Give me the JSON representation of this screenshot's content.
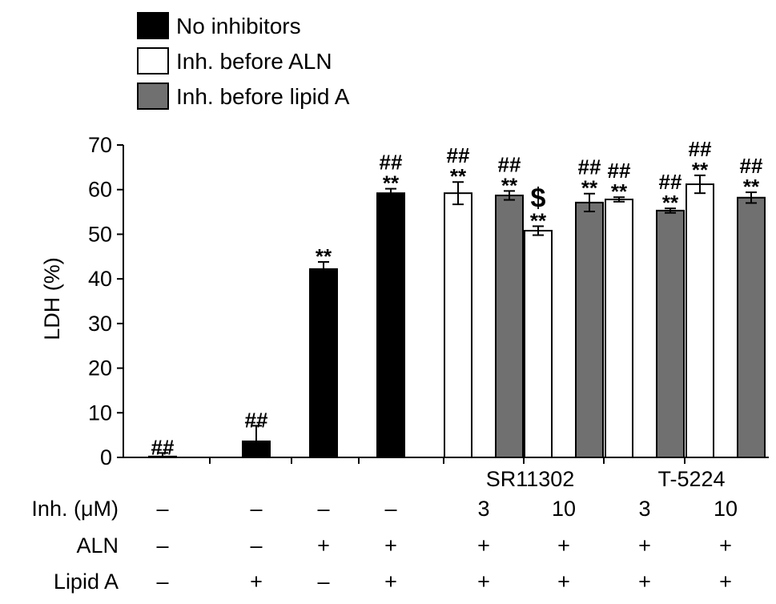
{
  "chart_data": {
    "type": "bar",
    "title": "",
    "ylabel": "LDH (%)",
    "xlabel": "",
    "ylim": [
      0,
      70
    ],
    "yticks": [
      0,
      10,
      20,
      30,
      40,
      50,
      60,
      70
    ],
    "grid": false,
    "legend_position": "top-left",
    "series": [
      {
        "name": "No inhibitors",
        "color": "#000000"
      },
      {
        "name": "Inh. before ALN",
        "color": "#ffffff"
      },
      {
        "name": "Inh. before lipid A",
        "color": "#707070"
      }
    ],
    "categories": [
      {
        "bars": [
          {
            "series": 0,
            "value": 0.2,
            "error": 0.8,
            "marks": [
              "##"
            ]
          }
        ]
      },
      {
        "bars": [
          {
            "series": 0,
            "value": 3.6,
            "error": 3.5,
            "marks": [
              "##"
            ]
          }
        ]
      },
      {
        "bars": [
          {
            "series": 0,
            "value": 42.2,
            "error": 1.6,
            "marks": [
              "**"
            ]
          }
        ]
      },
      {
        "bars": [
          {
            "series": 0,
            "value": 59.2,
            "error": 1.0,
            "marks": [
              "**",
              "##"
            ]
          }
        ]
      },
      {
        "bars": [
          {
            "series": 1,
            "value": 59.2,
            "error": 2.5,
            "marks": [
              "**",
              "##"
            ]
          },
          {
            "series": 2,
            "value": 58.7,
            "error": 1.0,
            "marks": [
              "**",
              "##"
            ]
          }
        ]
      },
      {
        "bars": [
          {
            "series": 1,
            "value": 50.8,
            "error": 1.0,
            "marks": [
              "**",
              "$"
            ]
          },
          {
            "series": 2,
            "value": 57.1,
            "error": 2.0,
            "marks": [
              "**",
              "##"
            ]
          }
        ]
      },
      {
        "bars": [
          {
            "series": 1,
            "value": 57.8,
            "error": 0.5,
            "marks": [
              "**",
              "##"
            ]
          },
          {
            "series": 2,
            "value": 55.3,
            "error": 0.5,
            "marks": [
              "**",
              "##"
            ]
          }
        ]
      },
      {
        "bars": [
          {
            "series": 1,
            "value": 61.2,
            "error": 2.0,
            "marks": [
              "**",
              "##"
            ]
          },
          {
            "series": 2,
            "value": 58.2,
            "error": 1.2,
            "marks": [
              "**",
              "##"
            ]
          }
        ]
      }
    ],
    "inhibitor_groups": [
      {
        "label": "SR11302",
        "categories": [
          4,
          5
        ]
      },
      {
        "label": "T-5224",
        "categories": [
          6,
          7
        ]
      }
    ],
    "conditions": [
      {
        "label": "Inh. (μM)",
        "values": [
          "–",
          "–",
          "–",
          "–",
          "3",
          "10",
          "3",
          "10"
        ]
      },
      {
        "label": "ALN",
        "values": [
          "–",
          "–",
          "+",
          "+",
          "+",
          "+",
          "+",
          "+"
        ]
      },
      {
        "label": "Lipid A",
        "values": [
          "–",
          "+",
          "–",
          "+",
          "+",
          "+",
          "+",
          "+"
        ]
      }
    ]
  }
}
